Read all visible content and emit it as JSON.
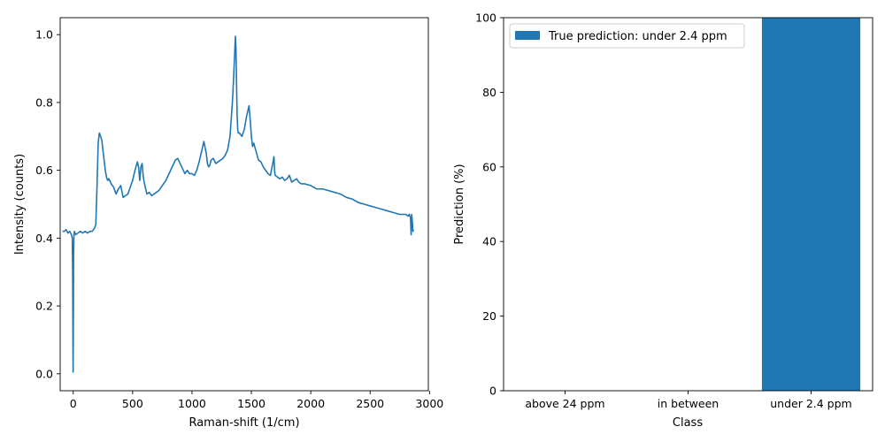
{
  "chart_data": [
    {
      "type": "line",
      "title": "",
      "xlabel": "Raman-shift (1/cm)",
      "ylabel": "Intensity (counts)",
      "xlim": [
        -110,
        2990
      ],
      "ylim": [
        -0.05,
        1.05
      ],
      "xticks": [
        0,
        500,
        1000,
        1500,
        2000,
        2500,
        3000
      ],
      "yticks": [
        0.0,
        0.2,
        0.4,
        0.6,
        0.8,
        1.0
      ],
      "xtick_labels": [
        "0",
        "500",
        "1000",
        "1500",
        "2000",
        "2500",
        "3000"
      ],
      "ytick_labels": [
        "0.0",
        "0.2",
        "0.4",
        "0.6",
        "0.8",
        "1.0"
      ],
      "grid": false,
      "color": "#1f77b4",
      "series": [
        {
          "x": [
            -90,
            -75,
            -60,
            -45,
            -30,
            -15,
            -8,
            -5,
            -3,
            -1,
            1,
            3,
            6,
            10,
            20,
            40,
            60,
            80,
            100,
            120,
            140,
            160,
            180,
            190,
            200,
            210,
            220,
            230,
            240,
            250,
            260,
            270,
            280,
            290,
            300,
            320,
            340,
            360,
            380,
            400,
            420,
            440,
            460,
            480,
            500,
            520,
            540,
            550,
            560,
            570,
            580,
            590,
            600,
            610,
            620,
            640,
            660,
            680,
            700,
            720,
            740,
            760,
            780,
            800,
            820,
            840,
            860,
            880,
            900,
            920,
            940,
            960,
            980,
            1000,
            1020,
            1040,
            1060,
            1080,
            1100,
            1120,
            1130,
            1140,
            1150,
            1160,
            1180,
            1200,
            1220,
            1240,
            1260,
            1280,
            1300,
            1320,
            1340,
            1350,
            1360,
            1365,
            1370,
            1375,
            1380,
            1385,
            1390,
            1400,
            1420,
            1440,
            1460,
            1480,
            1490,
            1500,
            1510,
            1520,
            1540,
            1560,
            1580,
            1600,
            1620,
            1640,
            1660,
            1680,
            1690,
            1695,
            1700,
            1720,
            1740,
            1760,
            1780,
            1800,
            1820,
            1840,
            1860,
            1880,
            1900,
            1920,
            1950,
            2000,
            2050,
            2100,
            2150,
            2200,
            2250,
            2300,
            2350,
            2400,
            2450,
            2500,
            2550,
            2600,
            2650,
            2700,
            2750,
            2800,
            2820,
            2830,
            2840,
            2845,
            2850,
            2855,
            2860,
            2865
          ],
          "y": [
            0.42,
            0.42,
            0.425,
            0.415,
            0.42,
            0.41,
            0.4,
            0.3,
            0.15,
            0.005,
            0.15,
            0.35,
            0.41,
            0.42,
            0.41,
            0.415,
            0.42,
            0.415,
            0.42,
            0.415,
            0.42,
            0.42,
            0.43,
            0.44,
            0.55,
            0.68,
            0.71,
            0.7,
            0.69,
            0.66,
            0.63,
            0.6,
            0.58,
            0.57,
            0.575,
            0.56,
            0.55,
            0.53,
            0.545,
            0.555,
            0.52,
            0.525,
            0.53,
            0.55,
            0.57,
            0.6,
            0.625,
            0.61,
            0.57,
            0.61,
            0.62,
            0.58,
            0.56,
            0.545,
            0.53,
            0.535,
            0.525,
            0.53,
            0.535,
            0.54,
            0.55,
            0.56,
            0.57,
            0.585,
            0.6,
            0.615,
            0.63,
            0.635,
            0.62,
            0.605,
            0.59,
            0.6,
            0.59,
            0.59,
            0.585,
            0.6,
            0.625,
            0.655,
            0.685,
            0.65,
            0.62,
            0.61,
            0.615,
            0.63,
            0.635,
            0.62,
            0.625,
            0.63,
            0.635,
            0.645,
            0.66,
            0.7,
            0.8,
            0.87,
            0.95,
            0.995,
            0.96,
            0.86,
            0.76,
            0.72,
            0.71,
            0.71,
            0.7,
            0.72,
            0.76,
            0.79,
            0.75,
            0.7,
            0.67,
            0.68,
            0.655,
            0.63,
            0.625,
            0.61,
            0.6,
            0.59,
            0.585,
            0.62,
            0.64,
            0.6,
            0.585,
            0.58,
            0.575,
            0.58,
            0.57,
            0.575,
            0.585,
            0.565,
            0.57,
            0.575,
            0.565,
            0.56,
            0.56,
            0.555,
            0.545,
            0.545,
            0.54,
            0.535,
            0.53,
            0.52,
            0.515,
            0.505,
            0.5,
            0.495,
            0.49,
            0.485,
            0.48,
            0.475,
            0.47,
            0.47,
            0.465,
            0.47,
            0.46,
            0.41,
            0.47,
            0.45,
            0.42,
            0.425
          ]
        }
      ]
    },
    {
      "type": "bar",
      "title": "",
      "xlabel": "Class",
      "ylabel": "Prediction (%)",
      "ylim": [
        0,
        100
      ],
      "yticks": [
        0,
        20,
        40,
        60,
        80,
        100
      ],
      "ytick_labels": [
        "0",
        "20",
        "40",
        "60",
        "80",
        "100"
      ],
      "grid": false,
      "categories": [
        "above 24 ppm",
        "in between",
        "under 2.4 ppm"
      ],
      "series": [
        {
          "name": "True prediction: under 2.4 ppm",
          "values": [
            0,
            0,
            100
          ],
          "color": "#1f77b4"
        }
      ],
      "legend_position": "top-left"
    }
  ]
}
